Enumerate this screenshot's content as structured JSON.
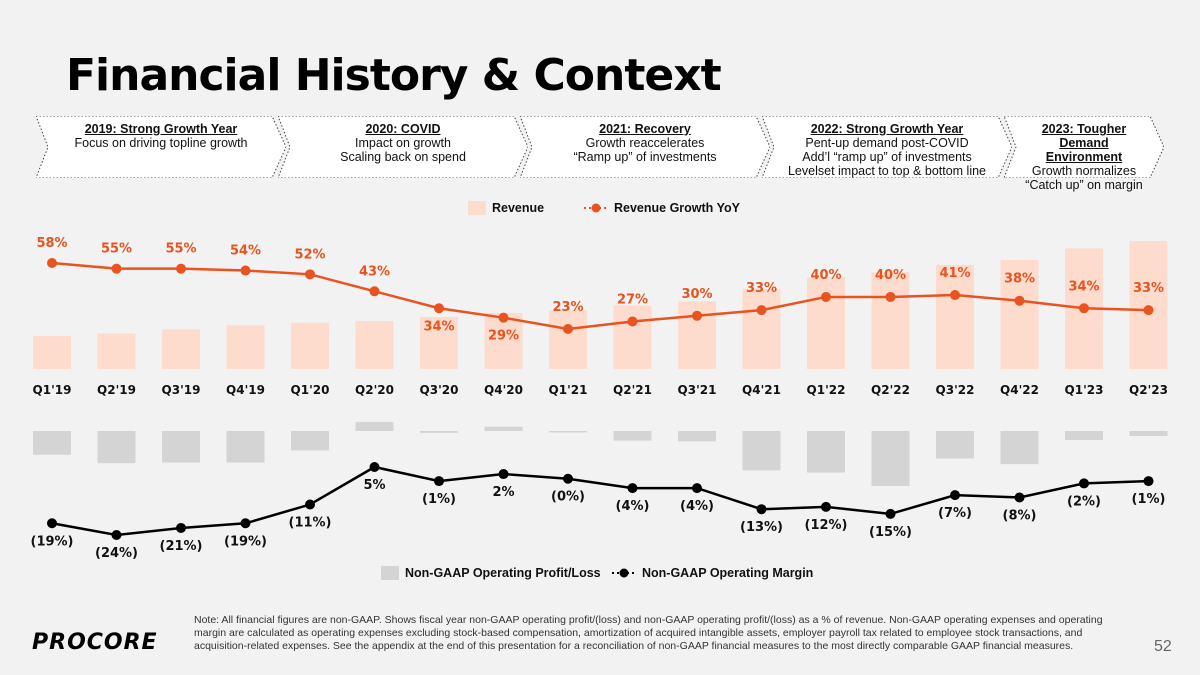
{
  "title": "Financial History & Context",
  "phases": [
    {
      "heading": "2019: Strong Growth Year",
      "lines": [
        "Focus on driving topline growth"
      ]
    },
    {
      "heading": "2020: COVID",
      "lines": [
        "Impact on growth",
        "Scaling back on spend"
      ]
    },
    {
      "heading": "2021: Recovery",
      "lines": [
        "Growth reaccelerates",
        "“Ramp up” of investments"
      ]
    },
    {
      "heading": "2022: Strong Growth Year",
      "lines": [
        "Pent-up demand post-COVID",
        "Add’l “ramp up” of investments",
        "Levelset impact to top & bottom line"
      ]
    },
    {
      "heading": "2023: Tougher Demand Environment",
      "lines": [
        "Growth normalizes",
        "“Catch up” on margin"
      ]
    }
  ],
  "colors": {
    "revenue_bar": "#fddccd",
    "revenue_growth": "#e8531f",
    "op_bar": "#d4d4d4",
    "op_margin": "#000000"
  },
  "chart_data": [
    {
      "type": "bar+line",
      "legend": [
        "Revenue",
        "Revenue Growth YoY"
      ],
      "categories": [
        "Q1'19",
        "Q2'19",
        "Q3'19",
        "Q4'19",
        "Q1'20",
        "Q2'20",
        "Q3'20",
        "Q4'20",
        "Q1'21",
        "Q2'21",
        "Q3'21",
        "Q4'21",
        "Q1'22",
        "Q2'22",
        "Q3'22",
        "Q4'22",
        "Q1'23",
        "Q2'23"
      ],
      "series": [
        {
          "name": "Revenue",
          "kind": "bar",
          "values": [
            40,
            43,
            48,
            53,
            56,
            58,
            63,
            68,
            71,
            77,
            82,
            97,
            111,
            117,
            126,
            132,
            146,
            155
          ]
        },
        {
          "name": "Revenue Growth YoY",
          "kind": "line",
          "values": [
            58,
            55,
            55,
            54,
            52,
            43,
            34,
            29,
            23,
            27,
            30,
            33,
            40,
            40,
            41,
            38,
            34,
            33
          ],
          "labels": [
            "58%",
            "55%",
            "55%",
            "54%",
            "52%",
            "43%",
            "34%",
            "29%",
            "23%",
            "27%",
            "30%",
            "33%",
            "40%",
            "40%",
            "41%",
            "38%",
            "34%",
            "33%"
          ]
        }
      ]
    },
    {
      "type": "bar+line",
      "legend": [
        "Non-GAAP Operating Profit/Loss",
        "Non-GAAP Operating Margin"
      ],
      "series": [
        {
          "name": "Non-GAAP Operating Profit/Loss",
          "kind": "bar",
          "values": [
            -7.6,
            -10.3,
            -10.1,
            -10.1,
            -6.2,
            2.9,
            -0.6,
            1.4,
            -0.3,
            -3.1,
            -3.3,
            -12.6,
            -13.3,
            -17.6,
            -8.8,
            -10.6,
            -2.9,
            -1.6
          ]
        },
        {
          "name": "Non-GAAP Operating Margin",
          "kind": "line",
          "values": [
            -19,
            -24,
            -21,
            -19,
            -11,
            5,
            -1,
            2,
            0,
            -4,
            -4,
            -13,
            -12,
            -15,
            -7,
            -8,
            -2,
            -1
          ],
          "labels": [
            "(19%)",
            "(24%)",
            "(21%)",
            "(19%)",
            "(11%)",
            "5%",
            "(1%)",
            "2%",
            "(0%)",
            "(4%)",
            "(4%)",
            "(13%)",
            "(12%)",
            "(15%)",
            "(7%)",
            "(8%)",
            "(2%)",
            "(1%)"
          ]
        }
      ]
    }
  ],
  "note": "Note: All financial figures are non-GAAP. Shows fiscal year non-GAAP operating profit/(loss) and non-GAAP operating profit/(loss) as a % of revenue. Non-GAAP operating expenses and operating margin are calculated as operating expenses excluding stock-based compensation, amortization of acquired intangible assets, employer payroll tax related to employee stock transactions, and acquisition-related expenses. See the appendix at the end of this presentation for a reconciliation of non-GAAP financial measures to the most directly comparable GAAP financial measures.",
  "logo": "PROCORE",
  "page_number": "52"
}
